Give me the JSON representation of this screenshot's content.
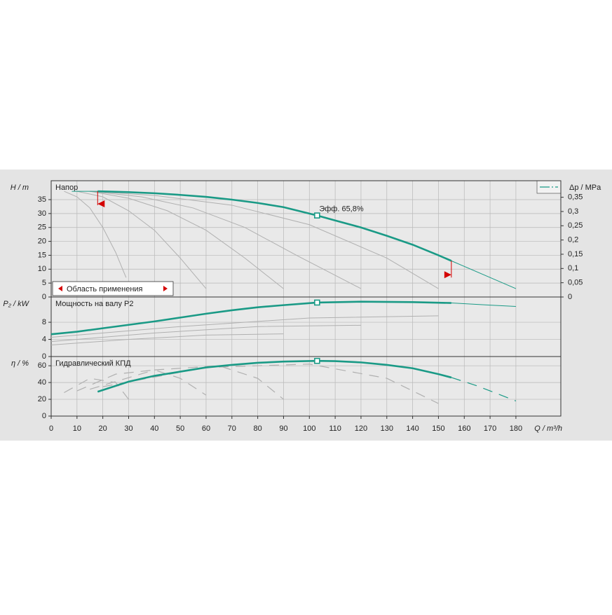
{
  "chart_data": [
    {
      "type": "line",
      "title": "Напор",
      "ylabel": "H / m",
      "y2label": "Δp / MPa",
      "xlim": [
        0,
        197.4
      ],
      "xticks": [
        0,
        10,
        20,
        30,
        40,
        50,
        60,
        70,
        80,
        90,
        100,
        110,
        120,
        130,
        140,
        150,
        160,
        170,
        180
      ],
      "ylim": [
        0,
        41.8
      ],
      "yticks": [
        0,
        5,
        10,
        15,
        20,
        25,
        30,
        35
      ],
      "y2lim": [
        0,
        0.408
      ],
      "y2ticks": [
        0,
        {
          "value": 0.05,
          "label": "0,05"
        },
        {
          "value": 0.1,
          "label": "0,1"
        },
        {
          "value": 0.15,
          "label": "0,15"
        },
        {
          "value": 0.2,
          "label": "0,2"
        },
        {
          "value": 0.25,
          "label": "0,25"
        },
        {
          "value": 0.3,
          "label": "0,3"
        },
        {
          "value": 0.35,
          "label": "0,35"
        }
      ],
      "series": [
        {
          "color": "#b0b0b0",
          "style": "thin",
          "x": [
            5,
            10,
            15,
            20,
            25,
            29
          ],
          "values": [
            38,
            36,
            32,
            25,
            16,
            7
          ]
        },
        {
          "color": "#b0b0b0",
          "style": "thin",
          "x": [
            10,
            20,
            30,
            40,
            50,
            60
          ],
          "values": [
            38,
            36,
            31,
            24,
            14,
            3
          ]
        },
        {
          "color": "#b0b0b0",
          "style": "thin",
          "x": [
            15,
            30,
            45,
            60,
            75,
            90
          ],
          "values": [
            38,
            35.5,
            31,
            24,
            14,
            3
          ]
        },
        {
          "color": "#b0b0b0",
          "style": "thin",
          "x": [
            15,
            35,
            55,
            75,
            95,
            120
          ],
          "values": [
            38,
            36,
            32,
            25,
            15,
            3
          ]
        },
        {
          "color": "#b0b0b0",
          "style": "thin",
          "x": [
            15,
            40,
            70,
            100,
            130,
            150
          ],
          "values": [
            38,
            36.5,
            33,
            26,
            14,
            3
          ]
        },
        {
          "color": "#1a9a86",
          "style": "thin",
          "x": [
            8,
            18
          ],
          "values": [
            38,
            38
          ]
        },
        {
          "color": "#1a9a86",
          "style": "thick",
          "x": [
            18,
            30,
            40,
            50,
            60,
            70,
            80,
            90,
            103,
            110,
            120,
            130,
            140,
            150,
            155
          ],
          "values": [
            38,
            37.7,
            37.3,
            36.7,
            36,
            35,
            33.8,
            32.3,
            29.3,
            27.5,
            25,
            22,
            18.8,
            15,
            13
          ]
        },
        {
          "color": "#1a9a86",
          "style": "thin",
          "x": [
            155,
            160,
            170,
            180
          ],
          "values": [
            13,
            11,
            7,
            3
          ]
        }
      ],
      "operating_point": {
        "x": 103,
        "y": 29.3,
        "label": "Эфф.  65,8%"
      },
      "application_range": {
        "label": "Область применения",
        "x": [
          18,
          155
        ]
      }
    },
    {
      "type": "line",
      "title": "Мощность на валу P2",
      "ylabel": "P₂ / kW",
      "xlim": [
        0,
        197.4
      ],
      "xticks": [
        0,
        10,
        20,
        30,
        40,
        50,
        60,
        70,
        80,
        90,
        100,
        110,
        120,
        130,
        140,
        150,
        160,
        170,
        180
      ],
      "ylim": [
        0,
        13.9
      ],
      "yticks": [
        0,
        4,
        8
      ],
      "series": [
        {
          "color": "#b0b0b0",
          "style": "thin",
          "x": [
            0,
            30,
            60,
            90
          ],
          "values": [
            2.7,
            4,
            5,
            5.3
          ]
        },
        {
          "color": "#b0b0b0",
          "style": "thin",
          "x": [
            0,
            40,
            80,
            120
          ],
          "values": [
            3.5,
            5.5,
            7,
            7.3
          ]
        },
        {
          "color": "#b0b0b0",
          "style": "thin",
          "x": [
            0,
            50,
            100,
            150
          ],
          "values": [
            4.5,
            7,
            9,
            9.5
          ]
        },
        {
          "color": "#1a9a86",
          "style": "thick",
          "x": [
            0,
            10,
            20,
            30,
            40,
            50,
            60,
            70,
            80,
            90,
            103,
            120,
            140,
            155
          ],
          "values": [
            5.2,
            5.8,
            6.6,
            7.4,
            8.2,
            9.1,
            10,
            10.8,
            11.5,
            12,
            12.6,
            12.8,
            12.7,
            12.5
          ]
        },
        {
          "color": "#1a9a86",
          "style": "thin",
          "x": [
            155,
            170,
            180
          ],
          "values": [
            12.5,
            12,
            11.7
          ]
        }
      ],
      "operating_point": {
        "x": 103,
        "y": 12.6
      }
    },
    {
      "type": "line",
      "title": "Гидравлический КПД",
      "ylabel": "η / %",
      "xlabel": "Q / m³/h",
      "xlim": [
        0,
        197.4
      ],
      "xticks": [
        0,
        10,
        20,
        30,
        40,
        50,
        60,
        70,
        80,
        90,
        100,
        110,
        120,
        130,
        140,
        150,
        160,
        170,
        180
      ],
      "ylim": [
        0,
        71
      ],
      "yticks": [
        0,
        20,
        40,
        60
      ],
      "series": [
        {
          "color": "#b0b0b0",
          "style": "dashed",
          "x": [
            5,
            15,
            25,
            30
          ],
          "values": [
            28,
            45,
            40,
            20
          ]
        },
        {
          "color": "#b0b0b0",
          "style": "dashed",
          "x": [
            10,
            25,
            40,
            50,
            60
          ],
          "values": [
            30,
            50,
            55,
            45,
            25
          ]
        },
        {
          "color": "#b0b0b0",
          "style": "dashed",
          "x": [
            15,
            40,
            65,
            80,
            90
          ],
          "values": [
            32,
            55,
            60,
            45,
            20
          ]
        },
        {
          "color": "#b0b0b0",
          "style": "dashed",
          "x": [
            20,
            60,
            100,
            130,
            150
          ],
          "values": [
            35,
            58,
            62,
            45,
            15
          ]
        },
        {
          "color": "#1a9a86",
          "style": "thick",
          "x": [
            18,
            30,
            40,
            50,
            60,
            70,
            80,
            90,
            103,
            110,
            120,
            130,
            140,
            150,
            155
          ],
          "values": [
            29,
            41,
            48,
            53,
            58,
            61,
            63.5,
            65,
            65.8,
            65.5,
            64,
            61,
            57,
            50,
            46
          ]
        },
        {
          "color": "#1a9a86",
          "style": "dashed",
          "x": [
            155,
            165,
            180
          ],
          "values": [
            46,
            36,
            18
          ]
        }
      ],
      "operating_point": {
        "x": 103,
        "y": 65.8
      }
    }
  ]
}
